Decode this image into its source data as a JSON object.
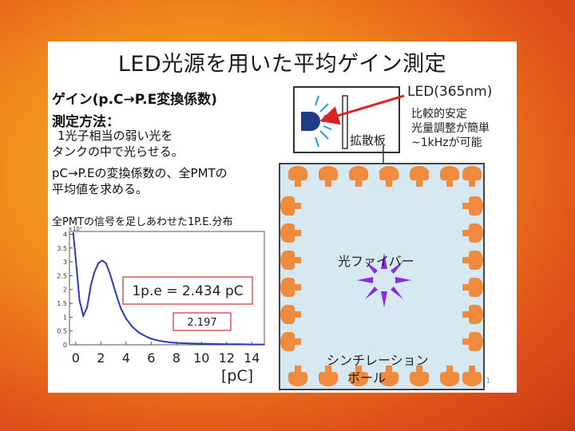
{
  "slide": {
    "title": "LED光源を用いた平均ゲイン測定",
    "heading_gain": "ゲイン(p.C→P.E変換係数)",
    "heading_method": "測定方法：",
    "method_line1": "1光子相当の弱い光を",
    "method_line2": "タンクの中で光らせる。",
    "method_line3": "pC→P.Eの変換係数の、全PMTの",
    "method_line4": "平均値を求める。",
    "chart_title": "全PMTの信号を足しあわせた1P.E.分布",
    "page_number": "1"
  },
  "diagram": {
    "led_label": "LED(365nm)",
    "led_notes": [
      "比較的安定",
      "光量調整が簡単",
      "~1kHzが可能"
    ],
    "diffuser_label": "拡散板",
    "fiber_label": "光ファイバー",
    "ball_label_line1": "シンチレーション",
    "ball_label_line2": "ボール",
    "colors": {
      "pmt": "#f08a3c",
      "tank": "#d6e9f2",
      "burst": "#8a2be2",
      "led": "#1f3c88",
      "arrow": "#dd2222"
    }
  },
  "chart_data": {
    "type": "line",
    "title": "全PMTの信号を足しあわせた1P.E.分布",
    "xlabel": "[pC]",
    "ylabel": "",
    "y_multiplier_label": "×10³",
    "xlim": [
      -0.5,
      15
    ],
    "ylim": [
      0,
      4.1
    ],
    "x_ticks": [
      0,
      2,
      4,
      6,
      8,
      10,
      12,
      14
    ],
    "y_ticks": [
      0,
      0.5,
      1,
      1.5,
      2,
      2.5,
      3,
      3.5,
      4
    ],
    "y_tick_labels": [
      "0",
      "0.5",
      "1",
      "1.5",
      "2",
      "2.5",
      "3",
      "3.5",
      "4"
    ],
    "x": [
      -0.2,
      0,
      0.3,
      0.6,
      0.9,
      1.2,
      1.5,
      1.8,
      2.1,
      2.4,
      2.7,
      3.0,
      3.3,
      3.6,
      4.0,
      4.5,
      5.0,
      5.5,
      6.0,
      6.5,
      7.0,
      7.5,
      8.0,
      9.0,
      10.0,
      11.0,
      12.0,
      13.0,
      14.0,
      15.0
    ],
    "y": [
      4.05,
      3.1,
      1.6,
      1.05,
      1.35,
      2.15,
      2.65,
      2.95,
      3.05,
      2.95,
      2.6,
      2.15,
      1.7,
      1.3,
      0.95,
      0.65,
      0.45,
      0.32,
      0.22,
      0.16,
      0.12,
      0.09,
      0.07,
      0.05,
      0.04,
      0.03,
      0.02,
      0.02,
      0.01,
      0.01
    ],
    "annotations": {
      "fit_result": "1p.e = 2.434 pC",
      "second_value": "2.197"
    },
    "grid": false
  }
}
